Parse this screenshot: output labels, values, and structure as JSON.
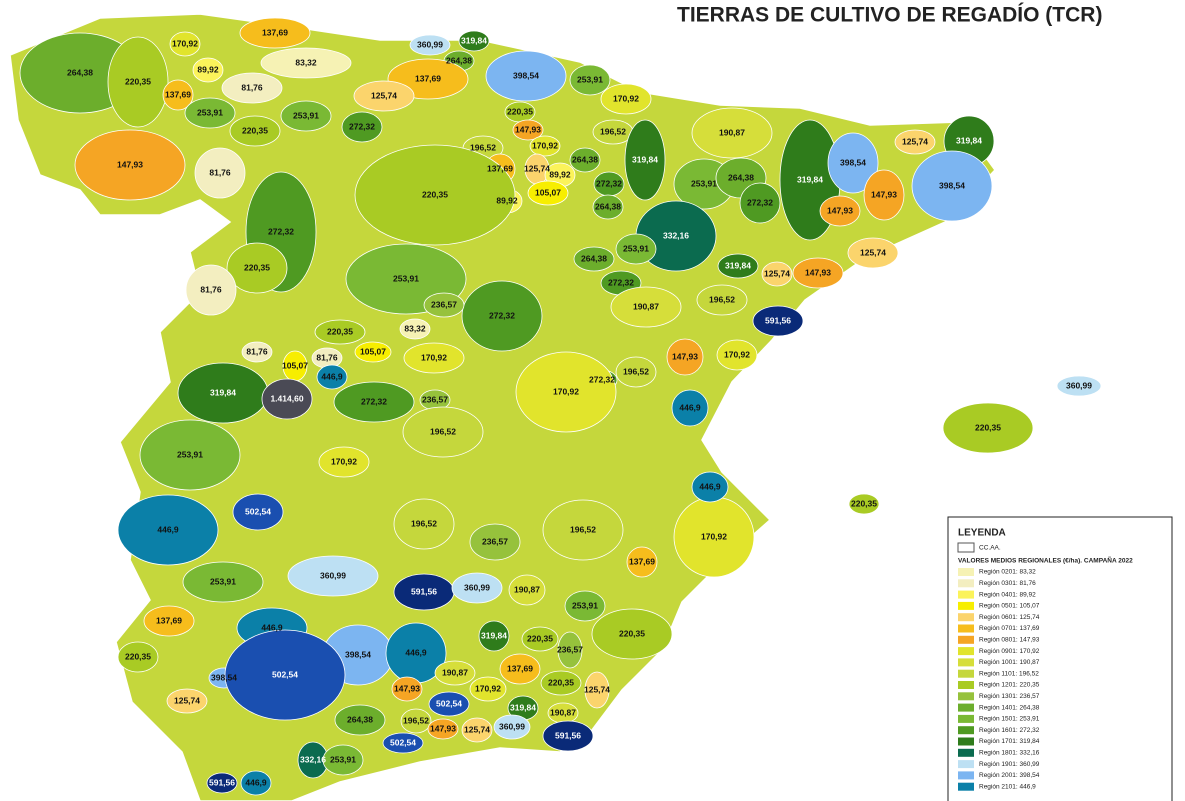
{
  "title": "TIERRAS DE CULTIVO DE REGADÍO (TCR)",
  "legend": {
    "title": "LEYENDA",
    "ccaa": "CC.AA.",
    "subtitle": "VALORES MEDIOS REGIONALES (€/ha). CAMPAÑA 2022",
    "items": [
      {
        "label": "Región 0201: 83,32",
        "color": "#f6f2b4"
      },
      {
        "label": "Región 0301: 81,76",
        "color": "#f3eec0"
      },
      {
        "label": "Región 0401: 89,92",
        "color": "#fbf35a"
      },
      {
        "label": "Región 0501: 105,07",
        "color": "#f7ee00"
      },
      {
        "label": "Región 0601: 125,74",
        "color": "#fbd46c"
      },
      {
        "label": "Región 0701: 137,69",
        "color": "#f6bd1c"
      },
      {
        "label": "Región 0801: 147,93",
        "color": "#f5a524"
      },
      {
        "label": "Región 0901: 170,92",
        "color": "#e1e42c"
      },
      {
        "label": "Región 1001: 190,87",
        "color": "#d6de3a"
      },
      {
        "label": "Región 1101: 196,52",
        "color": "#c5d73c"
      },
      {
        "label": "Región 1201: 220,35",
        "color": "#a9cb24"
      },
      {
        "label": "Región 1301: 236,57",
        "color": "#96c23c"
      },
      {
        "label": "Región 1401: 264,38",
        "color": "#6cae2c"
      },
      {
        "label": "Región 1501: 253,91",
        "color": "#7ab934"
      },
      {
        "label": "Región 1601: 272,32",
        "color": "#4f9a22"
      },
      {
        "label": "Región 1701: 319,84",
        "color": "#2f7c1b"
      },
      {
        "label": "Región 1801: 332,16",
        "color": "#0b6b4f"
      },
      {
        "label": "Región 1901: 360,99",
        "color": "#bde0f3"
      },
      {
        "label": "Región 2001: 398,54",
        "color": "#7cb5f1"
      },
      {
        "label": "Región 2101: 446,9",
        "color": "#0b80a8"
      }
    ]
  },
  "regions": [
    {
      "label": "264,38",
      "color": "#6cae2c"
    },
    {
      "label": "220,35",
      "color": "#a9cb24"
    },
    {
      "label": "170,92",
      "color": "#e1e42c"
    },
    {
      "label": "89,92",
      "color": "#fbf35a"
    },
    {
      "label": "137,69",
      "color": "#f6bd1c"
    },
    {
      "label": "137,69",
      "color": "#f6bd1c"
    },
    {
      "label": "83,32",
      "color": "#f6f2b4"
    },
    {
      "label": "81,76",
      "color": "#f3eec0"
    },
    {
      "label": "253,91",
      "color": "#7ab934"
    },
    {
      "label": "220,35",
      "color": "#a9cb24"
    },
    {
      "label": "253,91",
      "color": "#7ab934"
    },
    {
      "label": "147,93",
      "color": "#f5a524"
    },
    {
      "label": "81,76",
      "color": "#f3eec0"
    },
    {
      "label": "360,99",
      "color": "#bde0f3"
    },
    {
      "label": "319,84",
      "color": "#2f7c1b"
    },
    {
      "label": "264,38",
      "color": "#6cae2c"
    },
    {
      "label": "137,69",
      "color": "#f6bd1c"
    },
    {
      "label": "125,74",
      "color": "#fbd46c"
    },
    {
      "label": "272,32",
      "color": "#4f9a22"
    },
    {
      "label": "398,54",
      "color": "#7cb5f1"
    },
    {
      "label": "253,91",
      "color": "#7ab934"
    },
    {
      "label": "220,35",
      "color": "#a9cb24"
    },
    {
      "label": "170,92",
      "color": "#e1e42c"
    },
    {
      "label": "147,93",
      "color": "#f5a524"
    },
    {
      "label": "196,52",
      "color": "#c5d73c"
    },
    {
      "label": "170,92",
      "color": "#e1e42c"
    },
    {
      "label": "196,52",
      "color": "#c5d73c"
    },
    {
      "label": "137,69",
      "color": "#f6bd1c"
    },
    {
      "label": "125,74",
      "color": "#fbd46c"
    },
    {
      "label": "89,92",
      "color": "#fbf35a"
    },
    {
      "label": "264,38",
      "color": "#6cae2c"
    },
    {
      "label": "272,32",
      "color": "#4f9a22"
    },
    {
      "label": "105,07",
      "color": "#f7ee00"
    },
    {
      "label": "89,92",
      "color": "#fbf35a"
    },
    {
      "label": "264,38",
      "color": "#6cae2c"
    },
    {
      "label": "319,84",
      "color": "#2f7c1b"
    },
    {
      "label": "253,91",
      "color": "#7ab934"
    },
    {
      "label": "264,38",
      "color": "#6cae2c"
    },
    {
      "label": "272,32",
      "color": "#4f9a22"
    },
    {
      "label": "190,87",
      "color": "#d6de3a"
    },
    {
      "label": "332,16",
      "color": "#0b6b4f"
    },
    {
      "label": "253,91",
      "color": "#7ab934"
    },
    {
      "label": "264,38",
      "color": "#6cae2c"
    },
    {
      "label": "272,32",
      "color": "#4f9a22"
    },
    {
      "label": "319,84",
      "color": "#2f7c1b"
    },
    {
      "label": "319,84",
      "color": "#2f7c1b"
    },
    {
      "label": "398,54",
      "color": "#7cb5f1"
    },
    {
      "label": "125,74",
      "color": "#fbd46c"
    },
    {
      "label": "319,84",
      "color": "#2f7c1b"
    },
    {
      "label": "147,93",
      "color": "#f5a524"
    },
    {
      "label": "398,54",
      "color": "#7cb5f1"
    },
    {
      "label": "147,93",
      "color": "#f5a524"
    },
    {
      "label": "125,74",
      "color": "#fbd46c"
    },
    {
      "label": "147,93",
      "color": "#f5a524"
    },
    {
      "label": "125,74",
      "color": "#fbd46c"
    },
    {
      "label": "220,35",
      "color": "#a9cb24"
    },
    {
      "label": "272,32",
      "color": "#4f9a22"
    },
    {
      "label": "220,35",
      "color": "#a9cb24"
    },
    {
      "label": "81,76",
      "color": "#f3eec0"
    },
    {
      "label": "253,91",
      "color": "#7ab934"
    },
    {
      "label": "272,32",
      "color": "#4f9a22"
    },
    {
      "label": "236,57",
      "color": "#96c23c"
    },
    {
      "label": "220,35",
      "color": "#a9cb24"
    },
    {
      "label": "83,32",
      "color": "#f6f2b4"
    },
    {
      "label": "81,76",
      "color": "#f3eec0"
    },
    {
      "label": "105,07",
      "color": "#f7ee00"
    },
    {
      "label": "81,76",
      "color": "#f3eec0"
    },
    {
      "label": "105,07",
      "color": "#f7ee00"
    },
    {
      "label": "170,92",
      "color": "#e1e42c"
    },
    {
      "label": "190,87",
      "color": "#d6de3a"
    },
    {
      "label": "196,52",
      "color": "#c5d73c"
    },
    {
      "label": "591,56",
      "color": "#0a2a78"
    },
    {
      "label": "147,93",
      "color": "#f5a524"
    },
    {
      "label": "170,92",
      "color": "#e1e42c"
    },
    {
      "label": "196,52",
      "color": "#c5d73c"
    },
    {
      "label": "272,32",
      "color": "#4f9a22"
    },
    {
      "label": "170,92",
      "color": "#e1e42c"
    },
    {
      "label": "319,84",
      "color": "#2f7c1b"
    },
    {
      "label": "1.414,60",
      "color": "#4a4a55"
    },
    {
      "label": "446,9",
      "color": "#0b80a8"
    },
    {
      "label": "272,32",
      "color": "#4f9a22"
    },
    {
      "label": "236,57",
      "color": "#96c23c"
    },
    {
      "label": "196,52",
      "color": "#c5d73c"
    },
    {
      "label": "446,9",
      "color": "#0b80a8"
    },
    {
      "label": "170,92",
      "color": "#e1e42c"
    },
    {
      "label": "253,91",
      "color": "#7ab934"
    },
    {
      "label": "502,54",
      "color": "#1a4fb0"
    },
    {
      "label": "446,9",
      "color": "#0b80a8"
    },
    {
      "label": "196,52",
      "color": "#c5d73c"
    },
    {
      "label": "236,57",
      "color": "#96c23c"
    },
    {
      "label": "196,52",
      "color": "#c5d73c"
    },
    {
      "label": "170,92",
      "color": "#e1e42c"
    },
    {
      "label": "446,9",
      "color": "#0b80a8"
    },
    {
      "label": "137,69",
      "color": "#f6bd1c"
    },
    {
      "label": "253,91",
      "color": "#7ab934"
    },
    {
      "label": "360,99",
      "color": "#bde0f3"
    },
    {
      "label": "591,56",
      "color": "#0a2a78"
    },
    {
      "label": "360,99",
      "color": "#bde0f3"
    },
    {
      "label": "190,87",
      "color": "#d6de3a"
    },
    {
      "label": "253,91",
      "color": "#7ab934"
    },
    {
      "label": "220,35",
      "color": "#a9cb24"
    },
    {
      "label": "137,69",
      "color": "#f6bd1c"
    },
    {
      "label": "446,9",
      "color": "#0b80a8"
    },
    {
      "label": "398,54",
      "color": "#7cb5f1"
    },
    {
      "label": "446,9",
      "color": "#0b80a8"
    },
    {
      "label": "319,84",
      "color": "#2f7c1b"
    },
    {
      "label": "220,35",
      "color": "#a9cb24"
    },
    {
      "label": "236,57",
      "color": "#96c23c"
    },
    {
      "label": "220,35",
      "color": "#a9cb24"
    },
    {
      "label": "398,54",
      "color": "#7cb5f1"
    },
    {
      "label": "502,54",
      "color": "#1a4fb0"
    },
    {
      "label": "137,69",
      "color": "#f6bd1c"
    },
    {
      "label": "190,87",
      "color": "#d6de3a"
    },
    {
      "label": "170,92",
      "color": "#e1e42c"
    },
    {
      "label": "220,35",
      "color": "#a9cb24"
    },
    {
      "label": "125,74",
      "color": "#fbd46c"
    },
    {
      "label": "125,74",
      "color": "#fbd46c"
    },
    {
      "label": "147,93",
      "color": "#f5a524"
    },
    {
      "label": "502,54",
      "color": "#1a4fb0"
    },
    {
      "label": "319,84",
      "color": "#2f7c1b"
    },
    {
      "label": "190,87",
      "color": "#d6de3a"
    },
    {
      "label": "264,38",
      "color": "#6cae2c"
    },
    {
      "label": "196,52",
      "color": "#c5d73c"
    },
    {
      "label": "147,93",
      "color": "#f5a524"
    },
    {
      "label": "125,74",
      "color": "#fbd46c"
    },
    {
      "label": "360,99",
      "color": "#bde0f3"
    },
    {
      "label": "502,54",
      "color": "#1a4fb0"
    },
    {
      "label": "591,56",
      "color": "#0a2a78"
    },
    {
      "label": "332,16",
      "color": "#0b6b4f"
    },
    {
      "label": "253,91",
      "color": "#7ab934"
    },
    {
      "label": "446,9",
      "color": "#0b80a8"
    },
    {
      "label": "591,56",
      "color": "#0a2a78"
    },
    {
      "label": "360,99",
      "color": "#bde0f3"
    },
    {
      "label": "220,35",
      "color": "#a9cb24"
    },
    {
      "label": "220,35",
      "color": "#a9cb24"
    }
  ]
}
